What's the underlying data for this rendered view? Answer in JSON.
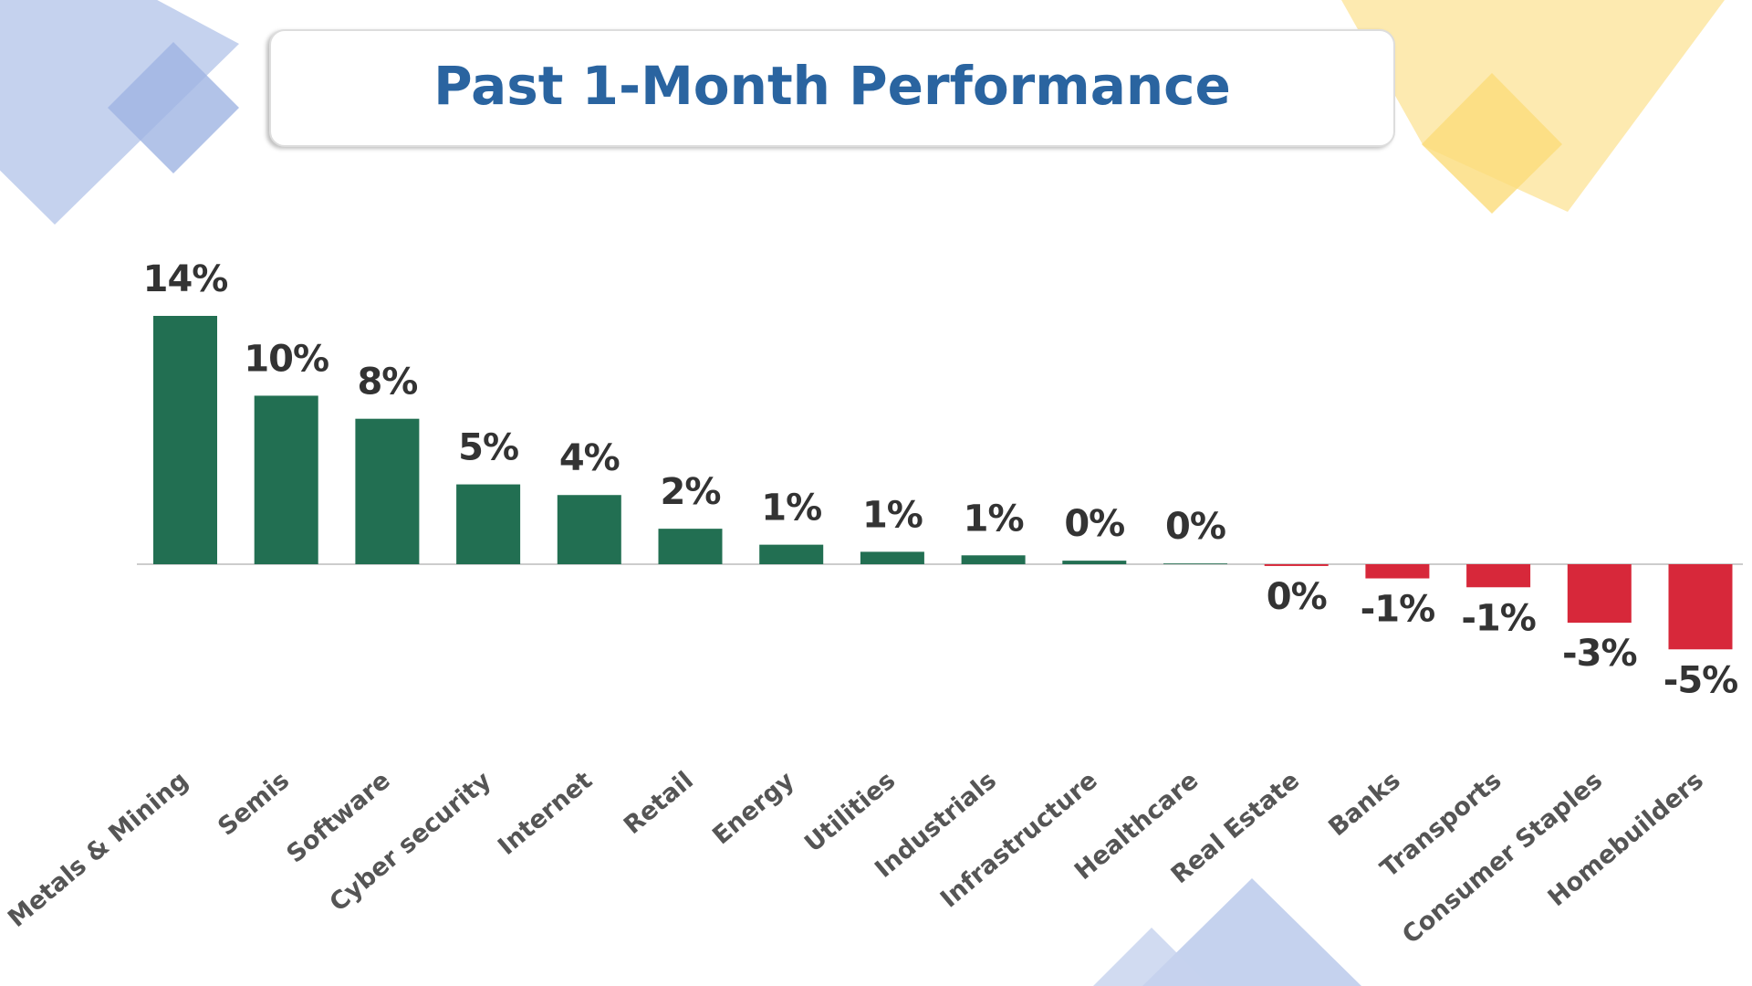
{
  "chart_data": {
    "type": "bar",
    "title": "Past 1-Month Performance",
    "categories": [
      "Metals & Mining",
      "Semis",
      "Software",
      "Cyber security",
      "Internet",
      "Retail",
      "Energy",
      "Utilities",
      "Industrials",
      "Infrastructure",
      "Healthcare",
      "Real Estate",
      "Banks",
      "Transports",
      "Consumer Staples",
      "Homebuilders"
    ],
    "values": [
      14.0,
      9.5,
      8.2,
      4.5,
      3.9,
      2.0,
      1.1,
      0.7,
      0.5,
      0.2,
      0.04,
      -0.1,
      -0.8,
      -1.3,
      -3.3,
      -4.8
    ],
    "value_labels": [
      "14%",
      "10%",
      "8%",
      "5%",
      "4%",
      "2%",
      "1%",
      "1%",
      "1%",
      "0%",
      "0%",
      "0%",
      "-1%",
      "-1%",
      "-3%",
      "-5%"
    ],
    "color": "#226f52",
    "negative_color": "#d7283a"
  }
}
